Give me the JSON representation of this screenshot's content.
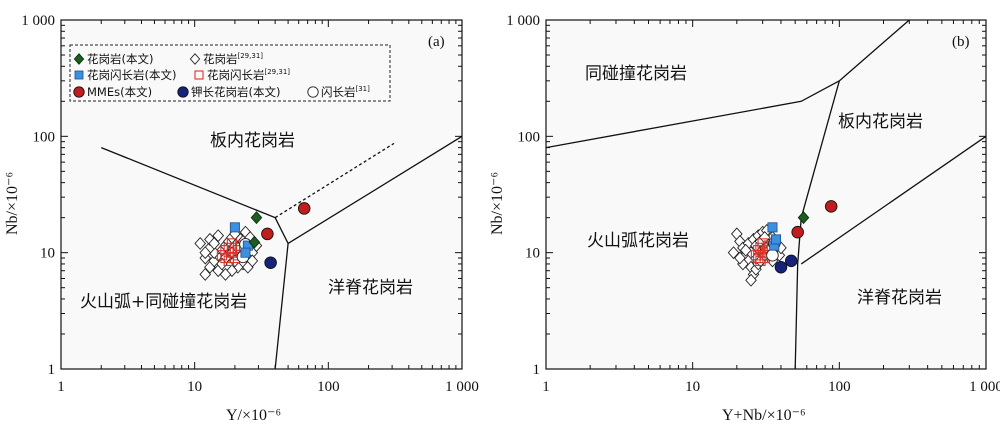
{
  "chart_data": [
    {
      "type": "scatter",
      "panel_label": "(a)",
      "xlabel": "Y/×10⁻⁶",
      "ylabel": "Nb/×10⁻⁶",
      "xscale": "log",
      "yscale": "log",
      "xlim": [
        1,
        1000
      ],
      "ylim": [
        1,
        1000
      ],
      "xticks": [
        "1",
        "10",
        "100",
        "1 000"
      ],
      "yticks": [
        "1",
        "10",
        "100",
        "1 000"
      ],
      "regions": [
        "板内花岗岩",
        "火山弧+同碰撞花岗岩",
        "洋脊花岗岩"
      ],
      "legend": {
        "placement": "top-left",
        "entries": [
          {
            "text": "花岗岩(本文)",
            "sup": ""
          },
          {
            "text": "花岗岩",
            "sup": "[29,31]"
          },
          {
            "text": "花岗闪长岩(本文)",
            "sup": ""
          },
          {
            "text": "花岗闪长岩",
            "sup": "[29,31]"
          },
          {
            "text": "MMEs(本文)",
            "sup": ""
          },
          {
            "text": "钾长花岗岩(本文)",
            "sup": ""
          },
          {
            "text": "闪长岩",
            "sup": "[31]"
          }
        ]
      },
      "boundaries": {
        "solid": [
          [
            [
              2,
              80
            ],
            [
              40,
              20
            ],
            [
              50,
              12
            ]
          ],
          [
            [
              50,
              12
            ],
            [
              1000,
              100
            ]
          ],
          [
            [
              50,
              12
            ],
            [
              40,
              1
            ]
          ]
        ],
        "dashed": [
          [
            [
              40,
              20
            ],
            [
              310,
              87
            ]
          ]
        ]
      },
      "series": [
        {
          "name": "花岗岩(本文)",
          "marker": "diamond-filled",
          "color": "#1b5e20",
          "points": [
            [
              29,
              20
            ],
            [
              28,
              12.3
            ]
          ]
        },
        {
          "name": "花岗岩[29,31]",
          "marker": "diamond-open",
          "color": "#222222",
          "points": [
            [
              12,
              6.5
            ],
            [
              13,
              7.5
            ],
            [
              14,
              8.5
            ],
            [
              15,
              9.5
            ],
            [
              16,
              10.5
            ],
            [
              17,
              11.5
            ],
            [
              18,
              12.5
            ],
            [
              19,
              13.5
            ],
            [
              20,
              14.5
            ],
            [
              22,
              13
            ],
            [
              24,
              12
            ],
            [
              26,
              11
            ],
            [
              27,
              10
            ],
            [
              25,
              9
            ],
            [
              23,
              8
            ],
            [
              21,
              7.5
            ],
            [
              19,
              7
            ],
            [
              17,
              6.5
            ],
            [
              15,
              7
            ],
            [
              14,
              10
            ],
            [
              13,
              11
            ],
            [
              12,
              9
            ],
            [
              18,
              9.5
            ],
            [
              20,
              8.5
            ],
            [
              22,
              10.5
            ],
            [
              24,
              15
            ],
            [
              26,
              13.5
            ],
            [
              17,
              9
            ],
            [
              16,
              8
            ],
            [
              19,
              10
            ],
            [
              21,
              11
            ],
            [
              23,
              12.5
            ],
            [
              11,
              12
            ],
            [
              13,
              13
            ],
            [
              15,
              14
            ],
            [
              25,
              7.5
            ],
            [
              27,
              8.5
            ],
            [
              29,
              11.5
            ],
            [
              12,
              10
            ],
            [
              14,
              12
            ]
          ]
        },
        {
          "name": "花岗闪长岩(本文)",
          "marker": "square-filled",
          "color": "#3d8fe0",
          "points": [
            [
              20,
              16.5
            ],
            [
              25,
              11.5
            ],
            [
              24,
              10
            ]
          ]
        },
        {
          "name": "花岗闪长岩[29,31]",
          "marker": "square-open",
          "color": "#d9342b",
          "points": [
            [
              16,
              9.5
            ],
            [
              17,
              10.5
            ],
            [
              18,
              11
            ],
            [
              19,
              10
            ],
            [
              20,
              9
            ],
            [
              21,
              10.5
            ],
            [
              22,
              11.5
            ],
            [
              17,
              9
            ],
            [
              19,
              12
            ],
            [
              18,
              8.5
            ],
            [
              21,
              9.5
            ],
            [
              20,
              11
            ]
          ]
        },
        {
          "name": "MMEs(本文)",
          "marker": "circle-filled",
          "color": "#c21d1d",
          "points": [
            [
              35,
              14.5
            ],
            [
              66,
              24
            ]
          ]
        },
        {
          "name": "钾长花岗岩(本文)",
          "marker": "circle-filled",
          "color": "#15237a",
          "points": [
            [
              37,
              8.2
            ]
          ]
        },
        {
          "name": "闪长岩[31]",
          "marker": "circle-open",
          "color": "#222222",
          "points": [
            [
              24,
              11.8
            ],
            [
              23,
              9.2
            ]
          ]
        }
      ]
    },
    {
      "type": "scatter",
      "panel_label": "(b)",
      "xlabel": "Y+Nb/×10⁻⁶",
      "ylabel": "Nb/×10⁻⁶",
      "xscale": "log",
      "yscale": "log",
      "xlim": [
        1,
        1000
      ],
      "ylim": [
        1,
        1000
      ],
      "xticks": [
        "1",
        "10",
        "100",
        "1 000"
      ],
      "yticks": [
        "1",
        "10",
        "100",
        "1 000"
      ],
      "regions": [
        "同碰撞花岗岩",
        "板内花岗岩",
        "火山弧花岗岩",
        "洋脊花岗岩"
      ],
      "boundaries": {
        "solid": [
          [
            [
              1,
              80
            ],
            [
              55,
              200
            ],
            [
              100,
              300
            ]
          ],
          [
            [
              100,
              300
            ],
            [
              300,
              1000
            ]
          ],
          [
            [
              100,
              300
            ],
            [
              55,
              20
            ],
            [
              52,
              8
            ],
            [
              50,
              1
            ]
          ],
          [
            [
              55,
              8
            ],
            [
              1000,
              100
            ]
          ]
        ],
        "dashed": []
      },
      "series": [
        {
          "name": "花岗岩(本文)",
          "marker": "diamond-filled",
          "color": "#1b5e20",
          "points": [
            [
              57,
              20
            ]
          ]
        },
        {
          "name": "花岗岩[29,31]",
          "marker": "diamond-open",
          "color": "#222222",
          "points": [
            [
              20,
              14.5
            ],
            [
              21,
              12.5
            ],
            [
              22,
              11
            ],
            [
              23,
              9.5
            ],
            [
              24,
              8.5
            ],
            [
              25,
              7.5
            ],
            [
              26,
              6.5
            ],
            [
              27,
              7.2
            ],
            [
              28,
              8
            ],
            [
              29,
              9
            ],
            [
              30,
              10
            ],
            [
              31,
              11
            ],
            [
              32,
              12
            ],
            [
              33,
              13
            ],
            [
              34,
              14
            ],
            [
              35,
              13.5
            ],
            [
              36,
              12.5
            ],
            [
              37,
              11.5
            ],
            [
              38,
              10.5
            ],
            [
              39,
              9.5
            ],
            [
              24,
              12
            ],
            [
              26,
              13
            ],
            [
              28,
              14
            ],
            [
              30,
              15
            ],
            [
              32,
              15.5
            ],
            [
              27,
              9
            ],
            [
              29,
              8.5
            ],
            [
              31,
              9.5
            ],
            [
              33,
              10.5
            ],
            [
              35,
              8.5
            ],
            [
              22,
              8
            ],
            [
              25,
              10
            ],
            [
              27,
              11.5
            ],
            [
              29,
              12.5
            ],
            [
              31,
              13.5
            ],
            [
              19,
              10
            ],
            [
              21,
              9
            ],
            [
              23,
              10.5
            ],
            [
              25,
              5.8
            ],
            [
              40,
              11
            ]
          ]
        },
        {
          "name": "花岗闪长岩(本文)",
          "marker": "square-filled",
          "color": "#3d8fe0",
          "points": [
            [
              35,
              16.5
            ],
            [
              36,
              11.5
            ],
            [
              37,
              13
            ]
          ]
        },
        {
          "name": "花岗闪长岩[29,31]",
          "marker": "square-open",
          "color": "#d9342b",
          "points": [
            [
              27,
              9.5
            ],
            [
              28,
              10.5
            ],
            [
              29,
              11
            ],
            [
              30,
              10
            ],
            [
              31,
              9
            ],
            [
              32,
              10.5
            ],
            [
              33,
              11.5
            ],
            [
              28,
              9
            ],
            [
              30,
              12
            ],
            [
              29,
              8.5
            ],
            [
              31,
              9.5
            ],
            [
              32,
              11
            ]
          ]
        },
        {
          "name": "MMEs(本文)",
          "marker": "circle-filled",
          "color": "#c21d1d",
          "points": [
            [
              52,
              15
            ],
            [
              88,
              25
            ]
          ]
        },
        {
          "name": "钾长花岗岩(本文)",
          "marker": "circle-filled",
          "color": "#15237a",
          "points": [
            [
              47,
              8.5
            ],
            [
              40,
              7.5
            ]
          ]
        },
        {
          "name": "闪长岩[31]",
          "marker": "circle-open",
          "color": "#222222",
          "points": [
            [
              36,
              12
            ],
            [
              35,
              9.5
            ]
          ]
        }
      ]
    }
  ]
}
